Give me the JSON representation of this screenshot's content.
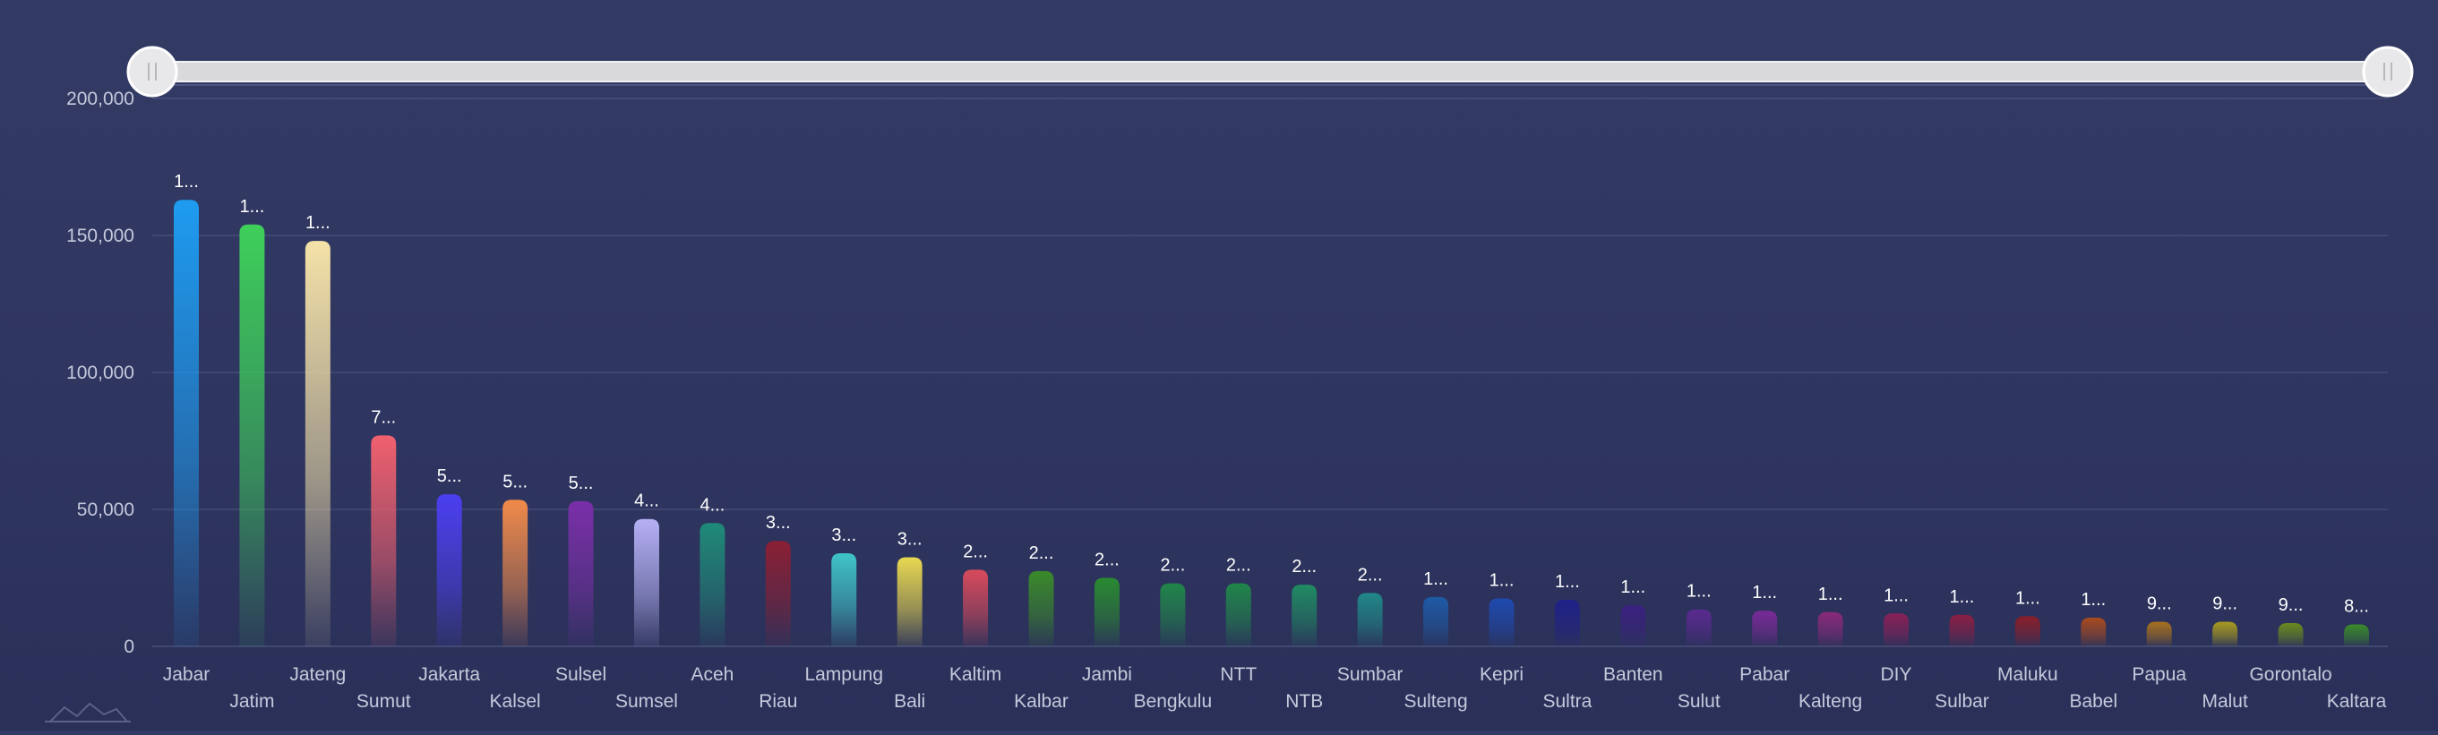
{
  "chart_data": {
    "type": "bar",
    "title": "",
    "xlabel": "",
    "ylabel": "",
    "ylim": [
      0,
      200000
    ],
    "yticks": [
      0,
      50000,
      100000,
      150000,
      200000
    ],
    "ytick_labels": [
      "0",
      "50,000",
      "100,000",
      "150,000",
      "200,000"
    ],
    "grid": true,
    "legend": "none",
    "categories": [
      "Jabar",
      "Jatim",
      "Jateng",
      "Sumut",
      "Jakarta",
      "Kalsel",
      "Sulsel",
      "Sumsel",
      "Aceh",
      "Riau",
      "Lampung",
      "Bali",
      "Kaltim",
      "Kalbar",
      "Jambi",
      "Bengkulu",
      "NTT",
      "NTB",
      "Sumbar",
      "Sulteng",
      "Kepri",
      "Sultra",
      "Banten",
      "Sulut",
      "Pabar",
      "Kalteng",
      "DIY",
      "Sulbar",
      "Maluku",
      "Babel",
      "Papua",
      "Malut",
      "Gorontalo",
      "Kaltara"
    ],
    "values": [
      163000,
      154000,
      148000,
      77000,
      55500,
      53500,
      53000,
      46500,
      45000,
      38500,
      34000,
      32500,
      28000,
      27500,
      25000,
      23000,
      23000,
      22500,
      19500,
      18000,
      17500,
      17000,
      15000,
      13500,
      13000,
      12500,
      12000,
      11500,
      11000,
      10500,
      9000,
      9000,
      8500,
      8000
    ],
    "data_labels": [
      "1...",
      "1...",
      "1...",
      "7...",
      "5...",
      "5...",
      "5...",
      "4...",
      "4...",
      "3...",
      "3...",
      "3...",
      "2...",
      "2...",
      "2...",
      "2...",
      "2...",
      "2...",
      "2...",
      "1...",
      "1...",
      "1...",
      "1...",
      "1...",
      "1...",
      "1...",
      "1...",
      "1...",
      "1...",
      "1...",
      "9...",
      "9...",
      "9...",
      "8..."
    ],
    "colors": [
      "#1e9bf0",
      "#3ecf5a",
      "#f5e2a8",
      "#f0606e",
      "#4b3ff0",
      "#f08a4a",
      "#7a2fa8",
      "#b6b0f5",
      "#1f8a78",
      "#8a1f34",
      "#3fc4c8",
      "#e8d850",
      "#d84a5c",
      "#3a8a2a",
      "#2a8a30",
      "#20864a",
      "#20864a",
      "#208a62",
      "#208888",
      "#1e5aa6",
      "#1e4ab0",
      "#20208a",
      "#3a2080",
      "#5a2a90",
      "#7a2a98",
      "#8a2a7a",
      "#8a2058",
      "#8a1e44",
      "#8a1e2a",
      "#a84a1e",
      "#a8701e",
      "#a89a1e",
      "#6a8a1e",
      "#3a8a2a"
    ],
    "series_colors_note": "",
    "range_slider": {
      "start": 0,
      "end": 1
    }
  }
}
